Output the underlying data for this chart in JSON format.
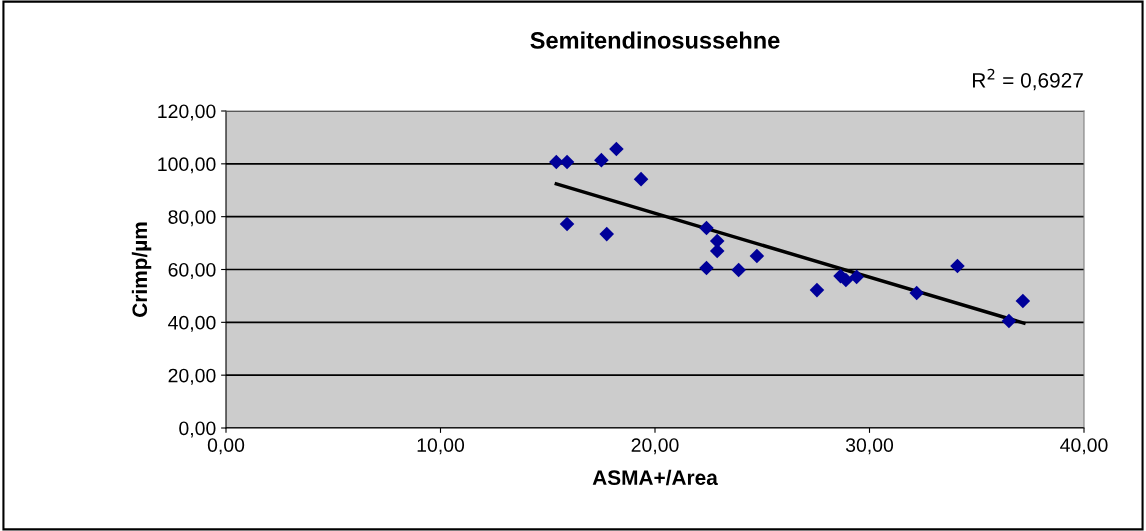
{
  "chart_data": {
    "type": "scatter",
    "title": "Semitendinosussehne",
    "xlabel": "ASMA+/Area",
    "ylabel": "Crimp/µm",
    "annotations": [
      "R$^{2}$ = 0,6927"
    ],
    "series": [
      {
        "color": "#000099",
        "marker": "diamond",
        "x": [
          15.4,
          15.9,
          17.5,
          18.2,
          19.35,
          15.9,
          17.75,
          22.4,
          22.9,
          22.9,
          22.4,
          23.9,
          24.75,
          27.55,
          28.65,
          28.9,
          29.4,
          32.2,
          34.1,
          36.5,
          37.15
        ],
        "values": [
          100.7,
          100.7,
          101.4,
          105.6,
          94.2,
          77.2,
          73.4,
          75.7,
          70.8,
          67.0,
          60.6,
          59.8,
          65.1,
          52.2,
          57.5,
          56.0,
          57.2,
          51.1,
          61.3,
          40.5,
          48.1
        ]
      },
      {
        "type": "line",
        "color": "#000000",
        "marker": "none",
        "x": [
          15.4,
          37.2
        ],
        "values": [
          92.4,
          39.7
        ]
      }
    ],
    "xlim": [
      0,
      40
    ],
    "ylim": [
      0,
      120
    ],
    "xticks": [
      {
        "value": 0,
        "label": "0,00"
      },
      {
        "value": 10,
        "label": "10,00"
      },
      {
        "value": 20,
        "label": "20,00"
      },
      {
        "value": 30,
        "label": "30,00"
      },
      {
        "value": 40,
        "label": "40,00"
      }
    ],
    "yticks": [
      {
        "value": 0,
        "label": "0,00"
      },
      {
        "value": 20,
        "label": "20,00"
      },
      {
        "value": 40,
        "label": "40,00"
      },
      {
        "value": 60,
        "label": "60,00"
      },
      {
        "value": 80,
        "label": "80,00"
      },
      {
        "value": 100,
        "label": "100,00"
      },
      {
        "value": 120,
        "label": "120,00"
      }
    ],
    "grid": "y",
    "legend": false
  }
}
